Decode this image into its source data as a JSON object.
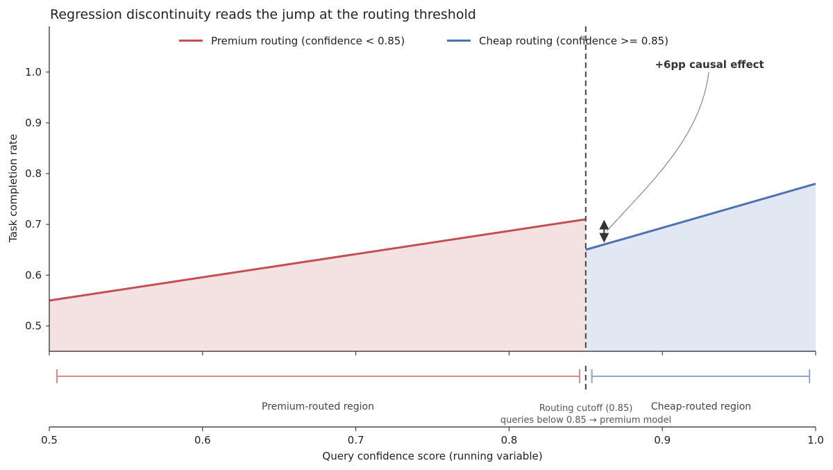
{
  "chart_data": {
    "type": "line",
    "title": "Regression discontinuity reads the jump at the routing threshold",
    "xlabel": "Query confidence score (running variable)",
    "ylabel": "Task completion rate",
    "xlim": [
      0.5,
      1.0
    ],
    "ylim": [
      0.45,
      1.09
    ],
    "x_ticks": [
      "0.5",
      "0.6",
      "0.7",
      "0.8",
      "0.9",
      "1.0"
    ],
    "y_ticks": [
      "0.5",
      "0.6",
      "0.7",
      "0.8",
      "0.9",
      "1.0"
    ],
    "grid": false,
    "legend_position": "top-center",
    "threshold": 0.85,
    "series": [
      {
        "name": "Premium routing (confidence < 0.85)",
        "color": "#c44e52",
        "fill": "#f4e1e2",
        "points": [
          [
            0.5,
            0.55
          ],
          [
            0.85,
            0.71
          ]
        ]
      },
      {
        "name": "Cheap routing (confidence >= 0.85)",
        "color": "#4c72b0",
        "fill": "#e1e7f3",
        "points": [
          [
            0.85,
            0.65
          ],
          [
            1.0,
            0.78
          ]
        ]
      }
    ],
    "annotation": {
      "text": "+6pp causal effect",
      "x": 0.862,
      "y_low": 0.665,
      "y_high": 0.708
    },
    "regions": [
      {
        "label": "Premium-routed region",
        "from": 0.505,
        "to": 0.846,
        "color": "#dd8a8c"
      },
      {
        "label": "Cheap-routed region",
        "from": 0.854,
        "to": 0.996,
        "color": "#8fa7d0"
      }
    ],
    "cutoff_label_line1": "Routing cutoff (0.85)",
    "cutoff_label_line2": "queries below 0.85 → premium model"
  }
}
